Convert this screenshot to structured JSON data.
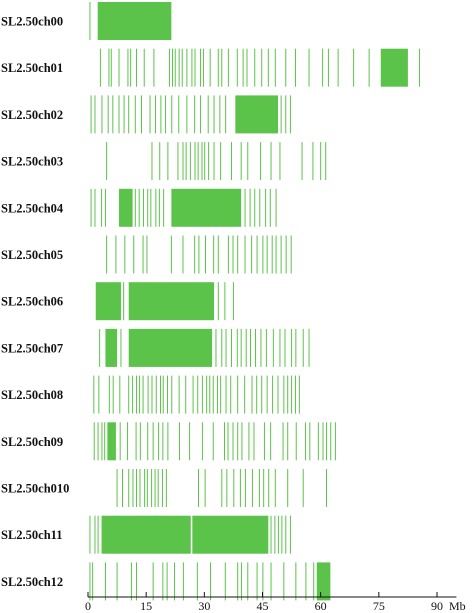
{
  "chart_data": {
    "type": "strip",
    "x_unit": "Mb",
    "xlim": [
      0,
      95
    ],
    "x_ticks": [
      0,
      15,
      30,
      45,
      60,
      75,
      90
    ],
    "colors": {
      "marker": "#5cc34a",
      "axis": "#111111"
    },
    "chromosomes": [
      {
        "name": "SL2.50ch00",
        "segments": [
          [
            2.5,
            21.5
          ]
        ],
        "markers": [
          0.5
        ]
      },
      {
        "name": "SL2.50ch01",
        "segments": [
          [
            75.5,
            82.5
          ]
        ],
        "markers": [
          3.2,
          5.4,
          6,
          8,
          10.3,
          11,
          12.5,
          14.5,
          17,
          21,
          21.8,
          22.5,
          23.5,
          24.3,
          25.5,
          26.8,
          27.6,
          29,
          29.8,
          31.5,
          33.6,
          34.5,
          36.2,
          38.5,
          40,
          41,
          43,
          44.8,
          46.5,
          48.3,
          51,
          53.5,
          57,
          60.5,
          62,
          64.5,
          68.5,
          72.5,
          85.5
        ]
      },
      {
        "name": "SL2.50ch02",
        "segments": [
          [
            38,
            49
          ]
        ],
        "markers": [
          0.8,
          1.8,
          3.6,
          5.2,
          6.4,
          8,
          9.3,
          10.5,
          12.2,
          13.8,
          16,
          17.4,
          18.8,
          20,
          21.6,
          23.4,
          25.5,
          27.5,
          29,
          31,
          32.5,
          34,
          35.5,
          49.8,
          51,
          52.2
        ]
      },
      {
        "name": "SL2.50ch03",
        "segments": [],
        "markers": [
          4.8,
          16.5,
          18.5,
          20.6,
          23.2,
          24.5,
          25.3,
          26.4,
          27.6,
          28.4,
          29.4,
          30.1,
          31.1,
          32.5,
          34.2,
          37,
          39.5,
          41.2,
          44.5,
          47.2,
          49.5,
          55.2,
          58,
          60,
          61.3
        ]
      },
      {
        "name": "SL2.50ch04",
        "segments": [
          [
            8,
            11.5
          ],
          [
            21.5,
            39.5
          ]
        ],
        "markers": [
          0.8,
          1.8,
          3.5,
          4.5,
          12.2,
          13.2,
          14.3,
          15.4,
          16.2,
          17.5,
          18.4,
          19.5,
          40.5,
          41.8,
          43,
          44.3,
          45.8,
          47,
          48.5
        ]
      },
      {
        "name": "SL2.50ch05",
        "segments": [],
        "markers": [
          4.8,
          7.2,
          9.5,
          11.8,
          14.2,
          15.2,
          21.5,
          24.5,
          27.5,
          28.6,
          30.3,
          32.4,
          33.6,
          36.2,
          37.4,
          38.6,
          40.5,
          42.2,
          43.6,
          45.1,
          46.2,
          47.5,
          48.5,
          49.8,
          51.1,
          52.4
        ]
      },
      {
        "name": "SL2.50ch06",
        "segments": [
          [
            2,
            8.5
          ],
          [
            10.5,
            32.5
          ]
        ],
        "markers": [
          9.2,
          33.6,
          35.3,
          37.5
        ]
      },
      {
        "name": "SL2.50ch07",
        "segments": [
          [
            4.5,
            7.5
          ],
          [
            10.5,
            32
          ]
        ],
        "markers": [
          3,
          8.5,
          33,
          34.5,
          35.6,
          37,
          38.5,
          39.5,
          40.8,
          41.9,
          43.2,
          44.6,
          46,
          47.8,
          49.5,
          50.8,
          52.5,
          53.6,
          55.5,
          57
        ]
      },
      {
        "name": "SL2.50ch08",
        "segments": [],
        "markers": [
          1.5,
          2.8,
          5.5,
          6.5,
          8.2,
          10.5,
          11.5,
          12.5,
          13.3,
          14.2,
          15.5,
          16.5,
          17.6,
          18.7,
          19.4,
          20.5,
          21.6,
          23.5,
          25.2,
          27.1,
          28.3,
          29.5,
          30.6,
          31.4,
          32.3,
          33.4,
          34.2,
          35.6,
          36.8,
          38.6,
          40.4,
          42.3,
          43.5,
          44.8,
          46.2,
          47.6,
          49,
          50.5,
          51.5,
          52.5,
          53.5,
          54.5
        ]
      },
      {
        "name": "SL2.50ch09",
        "segments": [
          [
            5,
            7.2
          ]
        ],
        "markers": [
          1.6,
          2.6,
          3.6,
          4.3,
          8.3,
          10.2,
          12.4,
          13.5,
          15.4,
          16.8,
          18.2,
          19.3,
          20.6,
          23.6,
          26.2,
          29.5,
          32.3,
          35.2,
          36.1,
          37.4,
          38.6,
          39.7,
          41.5,
          42.8,
          45.5,
          47.1,
          50.3,
          51.5,
          53.7,
          56.1,
          57.2,
          59.4,
          60.6,
          61.5,
          62.6,
          63.8
        ]
      },
      {
        "name": "SL2.50ch010",
        "segments": [],
        "markers": [
          7.5,
          8.9,
          10.5,
          11.6,
          12.5,
          13.4,
          14.6,
          15.3,
          16.4,
          17.3,
          18.1,
          19.2,
          20.2,
          28.5,
          30.2,
          34.5,
          35.8,
          37.6,
          39.3,
          40.6,
          42.4,
          44.2,
          45.3,
          46.6,
          48.3,
          51.5,
          55.5,
          61.5
        ]
      },
      {
        "name": "SL2.50ch11",
        "segments": [
          [
            3.5,
            26.5
          ],
          [
            26.9,
            46.5
          ]
        ],
        "markers": [
          0.5,
          1.8,
          2.6,
          7.5,
          13.5,
          17.5,
          47.2,
          48.2,
          49.1,
          50,
          51,
          52.2
        ]
      },
      {
        "name": "SL2.50ch12",
        "segments": [
          [
            59,
            62.5
          ]
        ],
        "markers": [
          0.5,
          1.2,
          4.5,
          7.5,
          11.2,
          12.5,
          16.8,
          19.3,
          20.4,
          22.3,
          24.6,
          28.2,
          31.6,
          35.4,
          38.6,
          39.6,
          41.2,
          43.6,
          45.1,
          47.2,
          50.5,
          53.6,
          56.2,
          58.2
        ]
      }
    ]
  }
}
